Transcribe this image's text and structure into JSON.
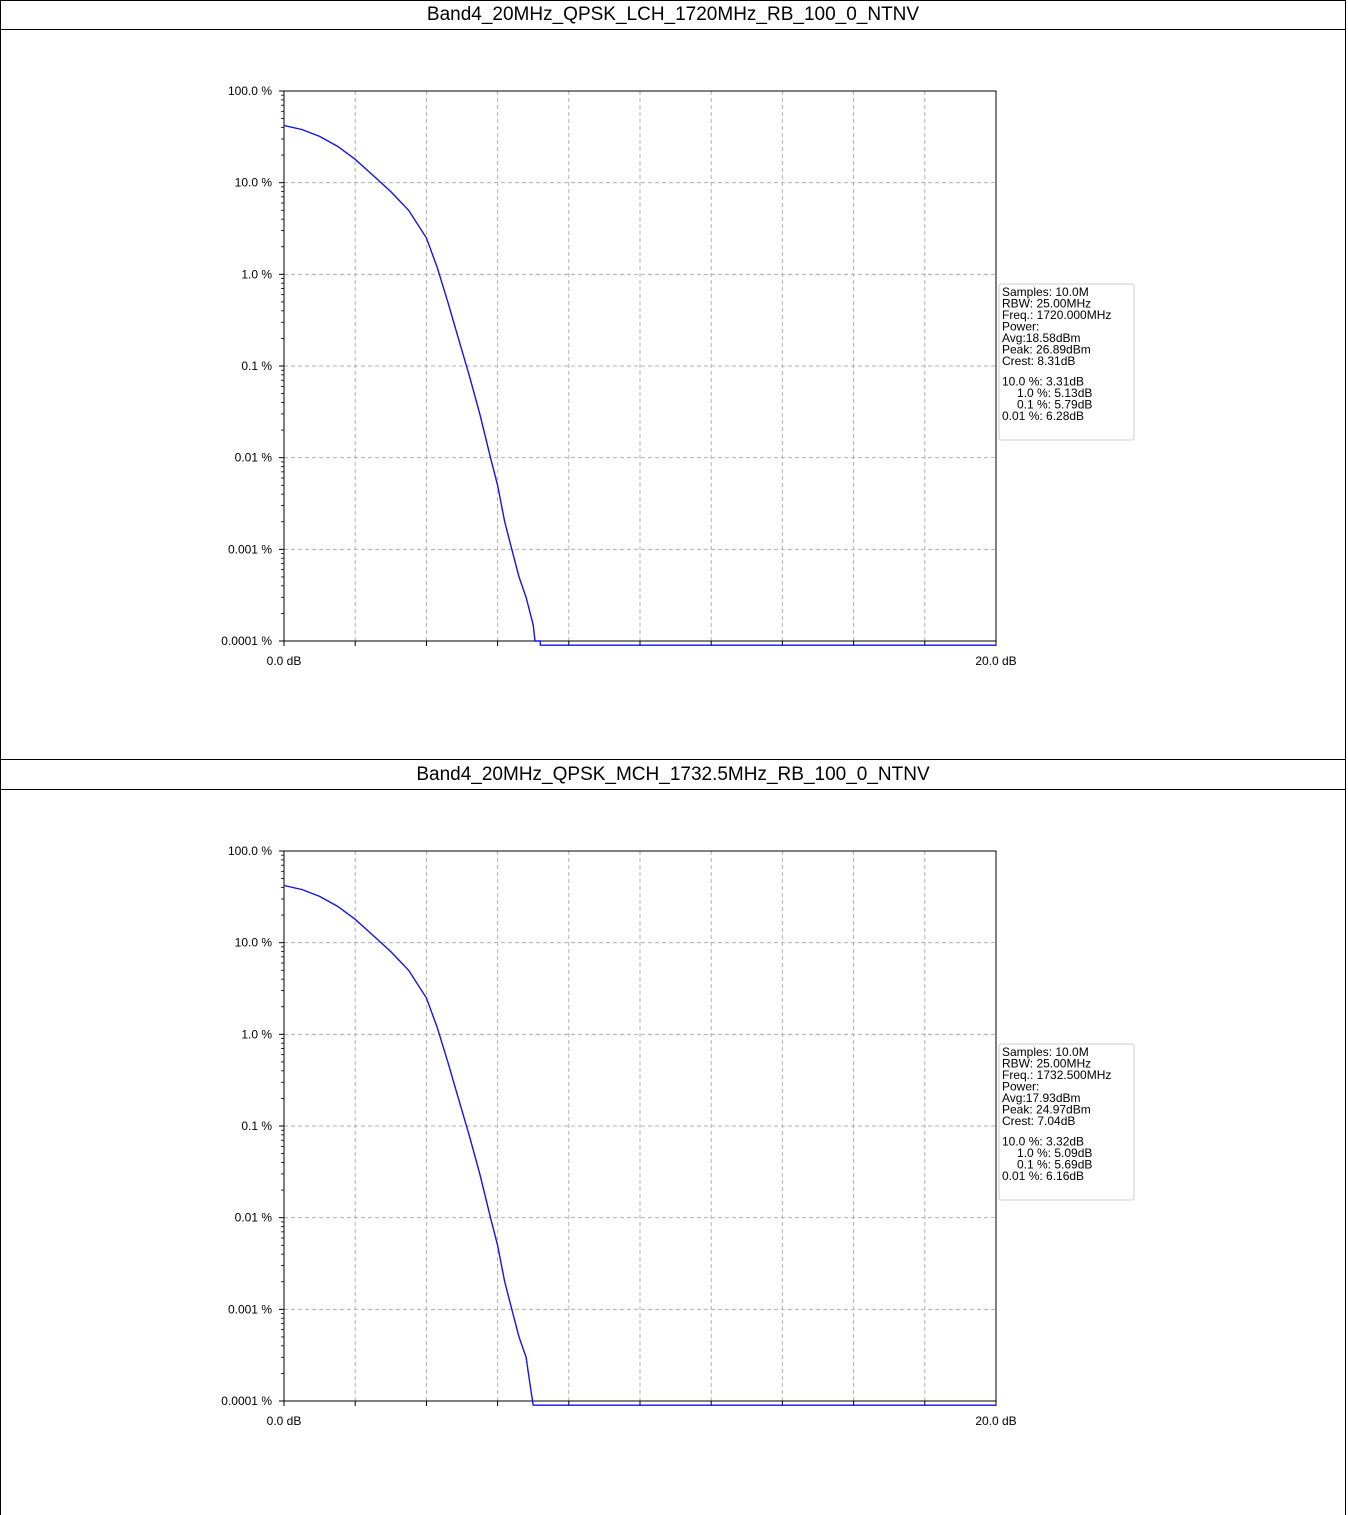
{
  "colors": {
    "series": "#1414e6",
    "grid": "#b0b0b0",
    "axis": "#000000"
  },
  "chart_data": [
    {
      "type": "line",
      "title": "Band4_20MHz_QPSK_LCH_1720MHz_RB_100_0_NTNV",
      "xlabel": "",
      "ylabel": "",
      "xlim": [
        0,
        20
      ],
      "ylim": [
        0.0001,
        100
      ],
      "yscale": "log",
      "grid": true,
      "x_tick_labels": [
        "0.0 dB",
        "20.0 dB"
      ],
      "y_tick_labels": [
        "100.0 %",
        "10.0 %",
        "1.0 %",
        "0.1 %",
        "0.01 %",
        "0.001 %",
        "0.0001 %"
      ],
      "series": [
        {
          "x": [
            0,
            0.5,
            1,
            1.5,
            2,
            2.5,
            3,
            3.5,
            4,
            4.3,
            4.6,
            4.9,
            5.2,
            5.5,
            5.8,
            6.0,
            6.2,
            6.4,
            6.6,
            6.8,
            7.0,
            7.05,
            7.2,
            7.2,
            7.3,
            20
          ],
          "y": [
            42,
            38,
            32,
            25,
            18,
            12,
            8,
            5,
            2.5,
            1.2,
            0.5,
            0.2,
            0.08,
            0.03,
            0.01,
            0.005,
            0.002,
            0.001,
            0.0005,
            0.0003,
            0.00015,
            0.0001,
            0.0001,
            9e-05,
            9e-05,
            9e-05
          ]
        }
      ],
      "legend_position": "right",
      "legend": {
        "lines": [
          "Samples: 10.0M",
          "RBW: 25.00MHz",
          "Freq.: 1720.000MHz",
          "Power:",
          "Avg:18.58dBm",
          "Peak: 26.89dBm",
          "Crest: 8.31dB"
        ],
        "stats": [
          "10.0 %: 3.31dB",
          "1.0 %: 5.13dB",
          "0.1 %: 5.79dB",
          "0.01 %: 6.28dB"
        ]
      }
    },
    {
      "type": "line",
      "title": "Band4_20MHz_QPSK_MCH_1732.5MHz_RB_100_0_NTNV",
      "xlabel": "",
      "ylabel": "",
      "xlim": [
        0,
        20
      ],
      "ylim": [
        0.0001,
        100
      ],
      "yscale": "log",
      "grid": true,
      "x_tick_labels": [
        "0.0 dB",
        "20.0 dB"
      ],
      "y_tick_labels": [
        "100.0 %",
        "10.0 %",
        "1.0 %",
        "0.1 %",
        "0.01 %",
        "0.001 %",
        "0.0001 %"
      ],
      "series": [
        {
          "x": [
            0,
            0.5,
            1,
            1.5,
            2,
            2.5,
            3,
            3.5,
            4,
            4.3,
            4.6,
            4.9,
            5.2,
            5.5,
            5.8,
            6.0,
            6.2,
            6.4,
            6.6,
            6.8,
            6.95,
            7.0,
            20
          ],
          "y": [
            42,
            38,
            32,
            25,
            18,
            12,
            8,
            5,
            2.5,
            1.2,
            0.5,
            0.2,
            0.08,
            0.03,
            0.01,
            0.005,
            0.002,
            0.001,
            0.0005,
            0.0003,
            0.00012,
            9e-05,
            9e-05
          ]
        }
      ],
      "legend_position": "right",
      "legend": {
        "lines": [
          "Samples: 10.0M",
          "RBW: 25.00MHz",
          "Freq.: 1732.500MHz",
          "Power:",
          "Avg:17.93dBm",
          "Peak: 24.97dBm",
          "Crest: 7.04dB"
        ],
        "stats": [
          "10.0 %: 3.32dB",
          "1.0 %: 5.09dB",
          "0.1 %: 5.69dB",
          "0.01 %: 6.16dB"
        ]
      }
    }
  ]
}
